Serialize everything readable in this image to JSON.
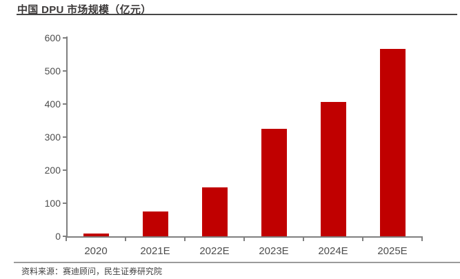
{
  "header": {
    "title": "中国 DPU 市场规模（亿元）"
  },
  "chart_data": {
    "type": "bar",
    "title": "中国 DPU 市场规模（亿元）",
    "categories": [
      "2020",
      "2021E",
      "2022E",
      "2023E",
      "2024E",
      "2025E"
    ],
    "values": [
      3.9,
      75.7,
      148.9,
      325.2,
      405.7,
      565.9
    ],
    "unit": "亿元",
    "xlabel": "",
    "ylabel": "",
    "ylim": [
      0,
      600
    ],
    "ytick_interval": 100,
    "ytick_labels": [
      "0",
      "100",
      "200",
      "300",
      "400",
      "500",
      "600"
    ],
    "grid": "off",
    "legend": "none",
    "bar_color": "#C00000"
  },
  "footer": {
    "source": "资料来源：赛迪顾问，民生证券研究院"
  },
  "colors": {
    "bar": "#C00000",
    "axis": "#7F7F7F",
    "tick_label": "#4D4D4D",
    "title_text": "#3B3838",
    "title_rule": "#464646",
    "footer_rule": "#9B9B9B",
    "background": "#FFFFFF"
  }
}
